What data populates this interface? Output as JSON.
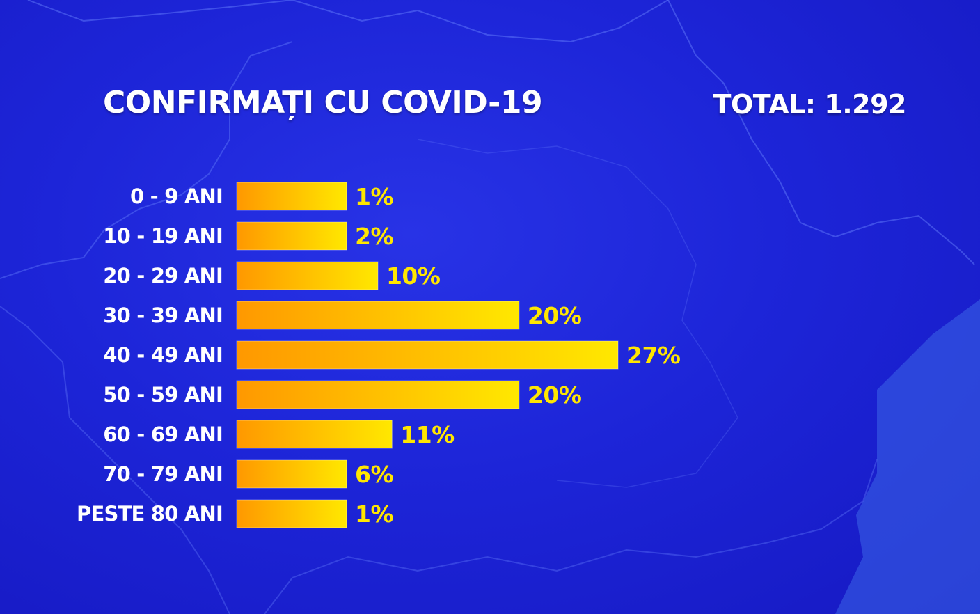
{
  "header": {
    "title": "CONFIRMAȚI CU COVID-19",
    "total": "TOTAL: 1.292"
  },
  "colors": {
    "background": "#1c23d6",
    "bar_start": "#ff9800",
    "bar_end": "#ffe800",
    "value_text": "#ffe600",
    "label_text": "#ffffff"
  },
  "chart_data": {
    "type": "bar",
    "orientation": "horizontal",
    "title": "CONFIRMAȚI CU COVID-19",
    "total_label": "TOTAL: 1.292",
    "categories": [
      "0 - 9 ANI",
      "10 - 19 ANI",
      "20 - 29 ANI",
      "30 - 39 ANI",
      "40 - 49 ANI",
      "50 - 59 ANI",
      "60 - 69 ANI",
      "70 - 79 ANI",
      "PESTE 80 ANI"
    ],
    "values": [
      1,
      2,
      10,
      20,
      27,
      20,
      11,
      6,
      1
    ],
    "value_labels": [
      "1%",
      "2%",
      "10%",
      "20%",
      "27%",
      "20%",
      "11%",
      "6%",
      "1%"
    ],
    "unit": "%",
    "xlim": [
      0,
      27
    ],
    "grid": false,
    "legend": "none"
  }
}
